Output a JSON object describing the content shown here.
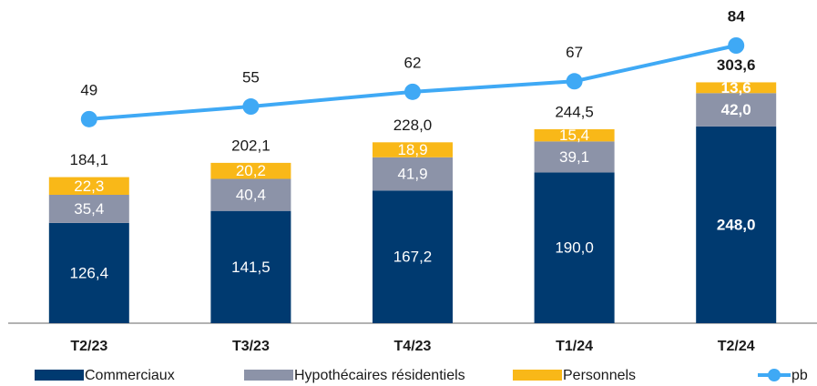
{
  "chart_data": {
    "type": "bar",
    "stacked": true,
    "categories": [
      "T2/23",
      "T3/23",
      "T4/23",
      "T1/24",
      "T2/24"
    ],
    "series": [
      {
        "name": "Commerciaux",
        "color": "#003a70",
        "values": [
          126.4,
          141.5,
          167.2,
          190.0,
          248.0
        ],
        "value_labels": [
          "126,4",
          "141,5",
          "167,2",
          "190,0",
          "248,0"
        ]
      },
      {
        "name": "Hypothécaires résidentiels",
        "color": "#8c93a8",
        "values": [
          35.4,
          40.4,
          41.9,
          39.1,
          42.0
        ],
        "value_labels": [
          "35,4",
          "40,4",
          "41,9",
          "39,1",
          "42,0"
        ]
      },
      {
        "name": "Personnels",
        "color": "#f9b818",
        "values": [
          22.3,
          20.2,
          18.9,
          15.4,
          13.6
        ],
        "value_labels": [
          "22,3",
          "20,2",
          "18,9",
          "15,4",
          "13,6"
        ]
      },
      {
        "name": "pb",
        "type": "line",
        "axis": "y2",
        "color": "#3fa9f5",
        "values": [
          49,
          55,
          62,
          67,
          84
        ]
      }
    ],
    "totals": [
      184.1,
      202.1,
      228.0,
      244.5,
      303.6
    ],
    "total_labels": [
      "184,1",
      "202,1",
      "228,0",
      "244,5",
      "303,6"
    ],
    "ylim": [
      0,
      350
    ],
    "y2lim": [
      -48,
      84
    ]
  }
}
